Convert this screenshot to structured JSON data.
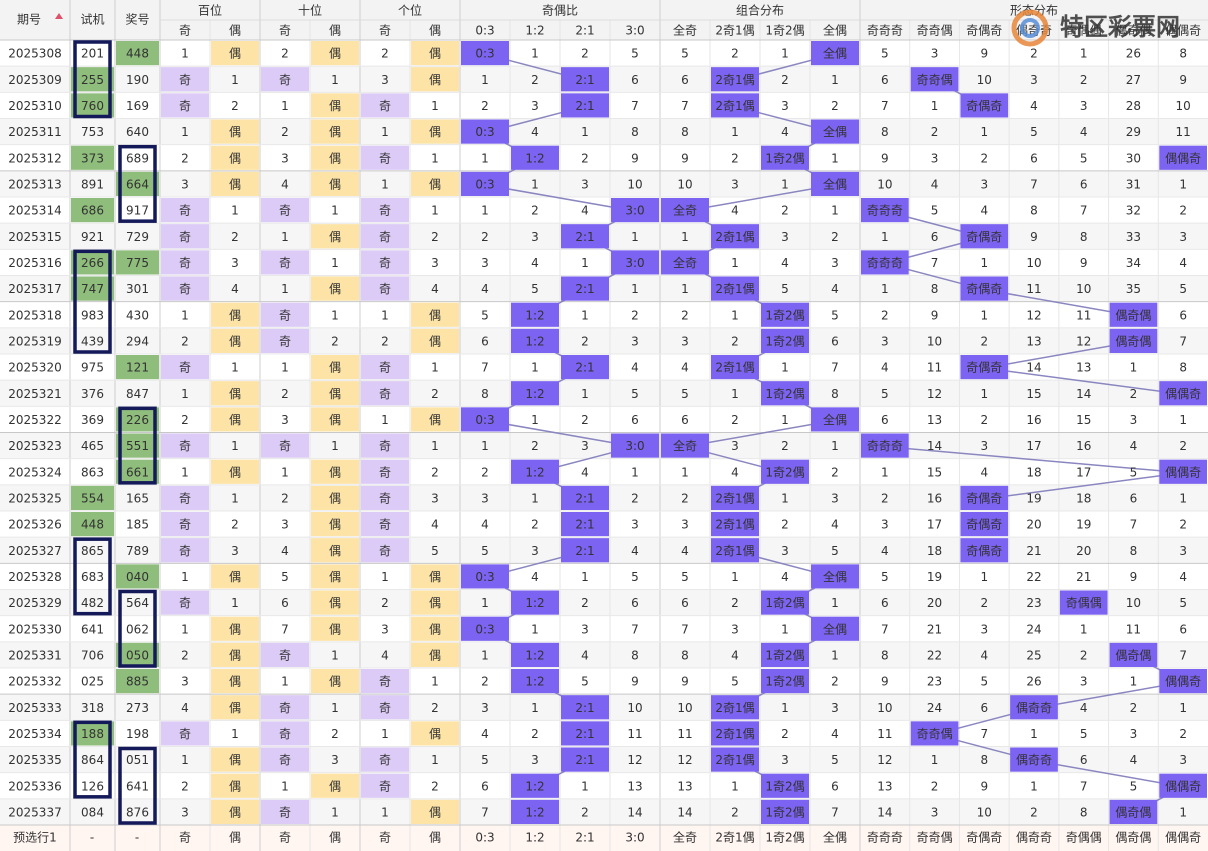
{
  "header": {
    "fixed": [
      "期号",
      "试机",
      "奖号"
    ],
    "groups": [
      {
        "name": "百位",
        "cols": [
          "奇",
          "偶"
        ]
      },
      {
        "name": "十位",
        "cols": [
          "奇",
          "偶"
        ]
      },
      {
        "name": "个位",
        "cols": [
          "奇",
          "偶"
        ]
      },
      {
        "name": "奇偶比",
        "cols": [
          "0:3",
          "1:2",
          "2:1",
          "3:0"
        ]
      },
      {
        "name": "组合分布",
        "cols": [
          "全奇",
          "2奇1偶",
          "1奇2偶",
          "全偶"
        ]
      },
      {
        "name": "形态分布",
        "cols": [
          "奇奇奇",
          "奇奇偶",
          "奇偶奇",
          "偶奇奇",
          "奇偶偶",
          "偶奇偶",
          "偶偶奇"
        ]
      }
    ]
  },
  "logo": "特区彩票网",
  "rows": [
    {
      "issue": "2025308",
      "test": "201",
      "draw": "448",
      "draw_hl": true,
      "cells": [
        "1",
        "偶",
        "2",
        "偶",
        "2",
        "偶",
        "0:3",
        "1",
        "2",
        "5",
        "5",
        "2",
        "1",
        "全偶",
        "5",
        "3",
        "9",
        "2",
        "1",
        "26",
        "8"
      ]
    },
    {
      "issue": "2025309",
      "test": "255",
      "test_hl": true,
      "draw": "190",
      "cells": [
        "奇",
        "1",
        "奇",
        "1",
        "3",
        "偶",
        "1",
        "2",
        "2:1",
        "6",
        "6",
        "2奇1偶",
        "2",
        "1",
        "6",
        "奇奇偶",
        "10",
        "3",
        "2",
        "27",
        "9"
      ]
    },
    {
      "issue": "2025310",
      "test": "760",
      "test_hl": true,
      "draw": "169",
      "cells": [
        "奇",
        "2",
        "1",
        "偶",
        "奇",
        "1",
        "2",
        "3",
        "2:1",
        "7",
        "7",
        "2奇1偶",
        "3",
        "2",
        "7",
        "1",
        "奇偶奇",
        "4",
        "3",
        "28",
        "10"
      ]
    },
    {
      "issue": "2025311",
      "test": "753",
      "draw": "640",
      "cells": [
        "1",
        "偶",
        "2",
        "偶",
        "1",
        "偶",
        "0:3",
        "4",
        "1",
        "8",
        "8",
        "1",
        "4",
        "全偶",
        "8",
        "2",
        "1",
        "5",
        "4",
        "29",
        "11"
      ]
    },
    {
      "issue": "2025312",
      "test": "373",
      "test_hl": true,
      "draw": "689",
      "cells": [
        "2",
        "偶",
        "3",
        "偶",
        "奇",
        "1",
        "1",
        "1:2",
        "2",
        "9",
        "9",
        "2",
        "1奇2偶",
        "1",
        "9",
        "3",
        "2",
        "6",
        "5",
        "30",
        "偶偶奇"
      ]
    },
    {
      "issue": "2025313",
      "test": "891",
      "draw": "664",
      "draw_hl": true,
      "cells": [
        "3",
        "偶",
        "4",
        "偶",
        "1",
        "偶",
        "0:3",
        "1",
        "3",
        "10",
        "10",
        "3",
        "1",
        "全偶",
        "10",
        "4",
        "3",
        "7",
        "6",
        "31",
        "1"
      ]
    },
    {
      "issue": "2025314",
      "test": "686",
      "test_hl": true,
      "draw": "917",
      "cells": [
        "奇",
        "1",
        "奇",
        "1",
        "奇",
        "1",
        "1",
        "2",
        "4",
        "3:0",
        "全奇",
        "4",
        "2",
        "1",
        "奇奇奇",
        "5",
        "4",
        "8",
        "7",
        "32",
        "2"
      ]
    },
    {
      "issue": "2025315",
      "test": "921",
      "draw": "729",
      "cells": [
        "奇",
        "2",
        "1",
        "偶",
        "奇",
        "2",
        "2",
        "3",
        "2:1",
        "1",
        "1",
        "2奇1偶",
        "3",
        "2",
        "1",
        "6",
        "奇偶奇",
        "9",
        "8",
        "33",
        "3"
      ]
    },
    {
      "issue": "2025316",
      "test": "266",
      "test_hl": true,
      "draw": "775",
      "draw_hl": true,
      "cells": [
        "奇",
        "3",
        "奇",
        "1",
        "奇",
        "3",
        "3",
        "4",
        "1",
        "3:0",
        "全奇",
        "1",
        "4",
        "3",
        "奇奇奇",
        "7",
        "1",
        "10",
        "9",
        "34",
        "4"
      ]
    },
    {
      "issue": "2025317",
      "test": "747",
      "test_hl": true,
      "draw": "301",
      "cells": [
        "奇",
        "4",
        "1",
        "偶",
        "奇",
        "4",
        "4",
        "5",
        "2:1",
        "1",
        "1",
        "2奇1偶",
        "5",
        "4",
        "1",
        "8",
        "奇偶奇",
        "11",
        "10",
        "35",
        "5"
      ]
    },
    {
      "issue": "2025318",
      "test": "983",
      "draw": "430",
      "cells": [
        "1",
        "偶",
        "奇",
        "1",
        "1",
        "偶",
        "5",
        "1:2",
        "1",
        "2",
        "2",
        "1",
        "1奇2偶",
        "5",
        "2",
        "9",
        "1",
        "12",
        "11",
        "偶奇偶",
        "6"
      ]
    },
    {
      "issue": "2025319",
      "test": "439",
      "draw": "294",
      "cells": [
        "2",
        "偶",
        "奇",
        "2",
        "2",
        "偶",
        "6",
        "1:2",
        "2",
        "3",
        "3",
        "2",
        "1奇2偶",
        "6",
        "3",
        "10",
        "2",
        "13",
        "12",
        "偶奇偶",
        "7"
      ]
    },
    {
      "issue": "2025320",
      "test": "975",
      "draw": "121",
      "draw_hl": true,
      "cells": [
        "奇",
        "1",
        "1",
        "偶",
        "奇",
        "1",
        "7",
        "1",
        "2:1",
        "4",
        "4",
        "2奇1偶",
        "1",
        "7",
        "4",
        "11",
        "奇偶奇",
        "14",
        "13",
        "1",
        "8"
      ]
    },
    {
      "issue": "2025321",
      "test": "376",
      "draw": "847",
      "cells": [
        "1",
        "偶",
        "2",
        "偶",
        "奇",
        "2",
        "8",
        "1:2",
        "1",
        "5",
        "5",
        "1",
        "1奇2偶",
        "8",
        "5",
        "12",
        "1",
        "15",
        "14",
        "2",
        "偶偶奇"
      ]
    },
    {
      "issue": "2025322",
      "test": "369",
      "draw": "226",
      "draw_hl": true,
      "cells": [
        "2",
        "偶",
        "3",
        "偶",
        "1",
        "偶",
        "0:3",
        "1",
        "2",
        "6",
        "6",
        "2",
        "1",
        "全偶",
        "6",
        "13",
        "2",
        "16",
        "15",
        "3",
        "1"
      ]
    },
    {
      "issue": "2025323",
      "test": "465",
      "draw": "551",
      "draw_hl": true,
      "cells": [
        "奇",
        "1",
        "奇",
        "1",
        "奇",
        "1",
        "1",
        "2",
        "3",
        "3:0",
        "全奇",
        "3",
        "2",
        "1",
        "奇奇奇",
        "14",
        "3",
        "17",
        "16",
        "4",
        "2"
      ]
    },
    {
      "issue": "2025324",
      "test": "863",
      "draw": "661",
      "draw_hl": true,
      "cells": [
        "1",
        "偶",
        "1",
        "偶",
        "奇",
        "2",
        "2",
        "1:2",
        "4",
        "1",
        "1",
        "4",
        "1奇2偶",
        "2",
        "1",
        "15",
        "4",
        "18",
        "17",
        "5",
        "偶偶奇"
      ]
    },
    {
      "issue": "2025325",
      "test": "554",
      "test_hl": true,
      "draw": "165",
      "cells": [
        "奇",
        "1",
        "2",
        "偶",
        "奇",
        "3",
        "3",
        "1",
        "2:1",
        "2",
        "2",
        "2奇1偶",
        "1",
        "3",
        "2",
        "16",
        "奇偶奇",
        "19",
        "18",
        "6",
        "1"
      ]
    },
    {
      "issue": "2025326",
      "test": "448",
      "test_hl": true,
      "draw": "185",
      "cells": [
        "奇",
        "2",
        "3",
        "偶",
        "奇",
        "4",
        "4",
        "2",
        "2:1",
        "3",
        "3",
        "2奇1偶",
        "2",
        "4",
        "3",
        "17",
        "奇偶奇",
        "20",
        "19",
        "7",
        "2"
      ]
    },
    {
      "issue": "2025327",
      "test": "865",
      "draw": "789",
      "cells": [
        "奇",
        "3",
        "4",
        "偶",
        "奇",
        "5",
        "5",
        "3",
        "2:1",
        "4",
        "4",
        "2奇1偶",
        "3",
        "5",
        "4",
        "18",
        "奇偶奇",
        "21",
        "20",
        "8",
        "3"
      ]
    },
    {
      "issue": "2025328",
      "test": "683",
      "draw": "040",
      "draw_hl": true,
      "cells": [
        "1",
        "偶",
        "5",
        "偶",
        "1",
        "偶",
        "0:3",
        "4",
        "1",
        "5",
        "5",
        "1",
        "4",
        "全偶",
        "5",
        "19",
        "1",
        "22",
        "21",
        "9",
        "4"
      ]
    },
    {
      "issue": "2025329",
      "test": "482",
      "draw": "564",
      "cells": [
        "奇",
        "1",
        "6",
        "偶",
        "2",
        "偶",
        "1",
        "1:2",
        "2",
        "6",
        "6",
        "2",
        "1奇2偶",
        "1",
        "6",
        "20",
        "2",
        "23",
        "奇偶偶",
        "10",
        "5"
      ]
    },
    {
      "issue": "2025330",
      "test": "641",
      "draw": "062",
      "cells": [
        "1",
        "偶",
        "7",
        "偶",
        "3",
        "偶",
        "0:3",
        "1",
        "3",
        "7",
        "7",
        "3",
        "1",
        "全偶",
        "7",
        "21",
        "3",
        "24",
        "1",
        "11",
        "6"
      ]
    },
    {
      "issue": "2025331",
      "test": "706",
      "draw": "050",
      "draw_hl": true,
      "cells": [
        "2",
        "偶",
        "奇",
        "1",
        "4",
        "偶",
        "1",
        "1:2",
        "4",
        "8",
        "8",
        "4",
        "1奇2偶",
        "1",
        "8",
        "22",
        "4",
        "25",
        "2",
        "偶奇偶",
        "7"
      ]
    },
    {
      "issue": "2025332",
      "test": "025",
      "draw": "885",
      "draw_hl": true,
      "cells": [
        "3",
        "偶",
        "1",
        "偶",
        "奇",
        "1",
        "2",
        "1:2",
        "5",
        "9",
        "9",
        "5",
        "1奇2偶",
        "2",
        "9",
        "23",
        "5",
        "26",
        "3",
        "1",
        "偶偶奇"
      ]
    },
    {
      "issue": "2025333",
      "test": "318",
      "draw": "273",
      "cells": [
        "4",
        "偶",
        "奇",
        "1",
        "奇",
        "2",
        "3",
        "1",
        "2:1",
        "10",
        "10",
        "2奇1偶",
        "1",
        "3",
        "10",
        "24",
        "6",
        "偶奇奇",
        "4",
        "2",
        "1"
      ]
    },
    {
      "issue": "2025334",
      "test": "188",
      "test_hl": true,
      "draw": "198",
      "cells": [
        "奇",
        "1",
        "奇",
        "2",
        "1",
        "偶",
        "4",
        "2",
        "2:1",
        "11",
        "11",
        "2奇1偶",
        "2",
        "4",
        "11",
        "奇奇偶",
        "7",
        "1",
        "5",
        "3",
        "2"
      ]
    },
    {
      "issue": "2025335",
      "test": "864",
      "draw": "051",
      "cells": [
        "1",
        "偶",
        "奇",
        "3",
        "奇",
        "1",
        "5",
        "3",
        "2:1",
        "12",
        "12",
        "2奇1偶",
        "3",
        "5",
        "12",
        "1",
        "8",
        "偶奇奇",
        "6",
        "4",
        "3"
      ]
    },
    {
      "issue": "2025336",
      "test": "126",
      "draw": "641",
      "cells": [
        "2",
        "偶",
        "1",
        "偶",
        "奇",
        "2",
        "6",
        "1:2",
        "1",
        "13",
        "13",
        "1",
        "1奇2偶",
        "6",
        "13",
        "2",
        "9",
        "1",
        "7",
        "5",
        "偶偶奇"
      ]
    },
    {
      "issue": "2025337",
      "test": "084",
      "draw": "876",
      "cells": [
        "3",
        "偶",
        "奇",
        "1",
        "1",
        "偶",
        "7",
        "1:2",
        "2",
        "14",
        "14",
        "2",
        "1奇2偶",
        "7",
        "14",
        "3",
        "10",
        "2",
        "8",
        "偶奇偶",
        "1"
      ]
    }
  ],
  "footer": {
    "issue": "预选行1",
    "test": "-",
    "draw": "-",
    "cells": [
      "奇",
      "偶",
      "奇",
      "偶",
      "奇",
      "偶",
      "0:3",
      "1:2",
      "2:1",
      "3:0",
      "全奇",
      "2奇1偶",
      "1奇2偶",
      "全偶",
      "奇奇奇",
      "奇奇偶",
      "奇偶奇",
      "偶奇奇",
      "奇偶偶",
      "偶奇偶",
      "偶偶奇"
    ]
  }
}
